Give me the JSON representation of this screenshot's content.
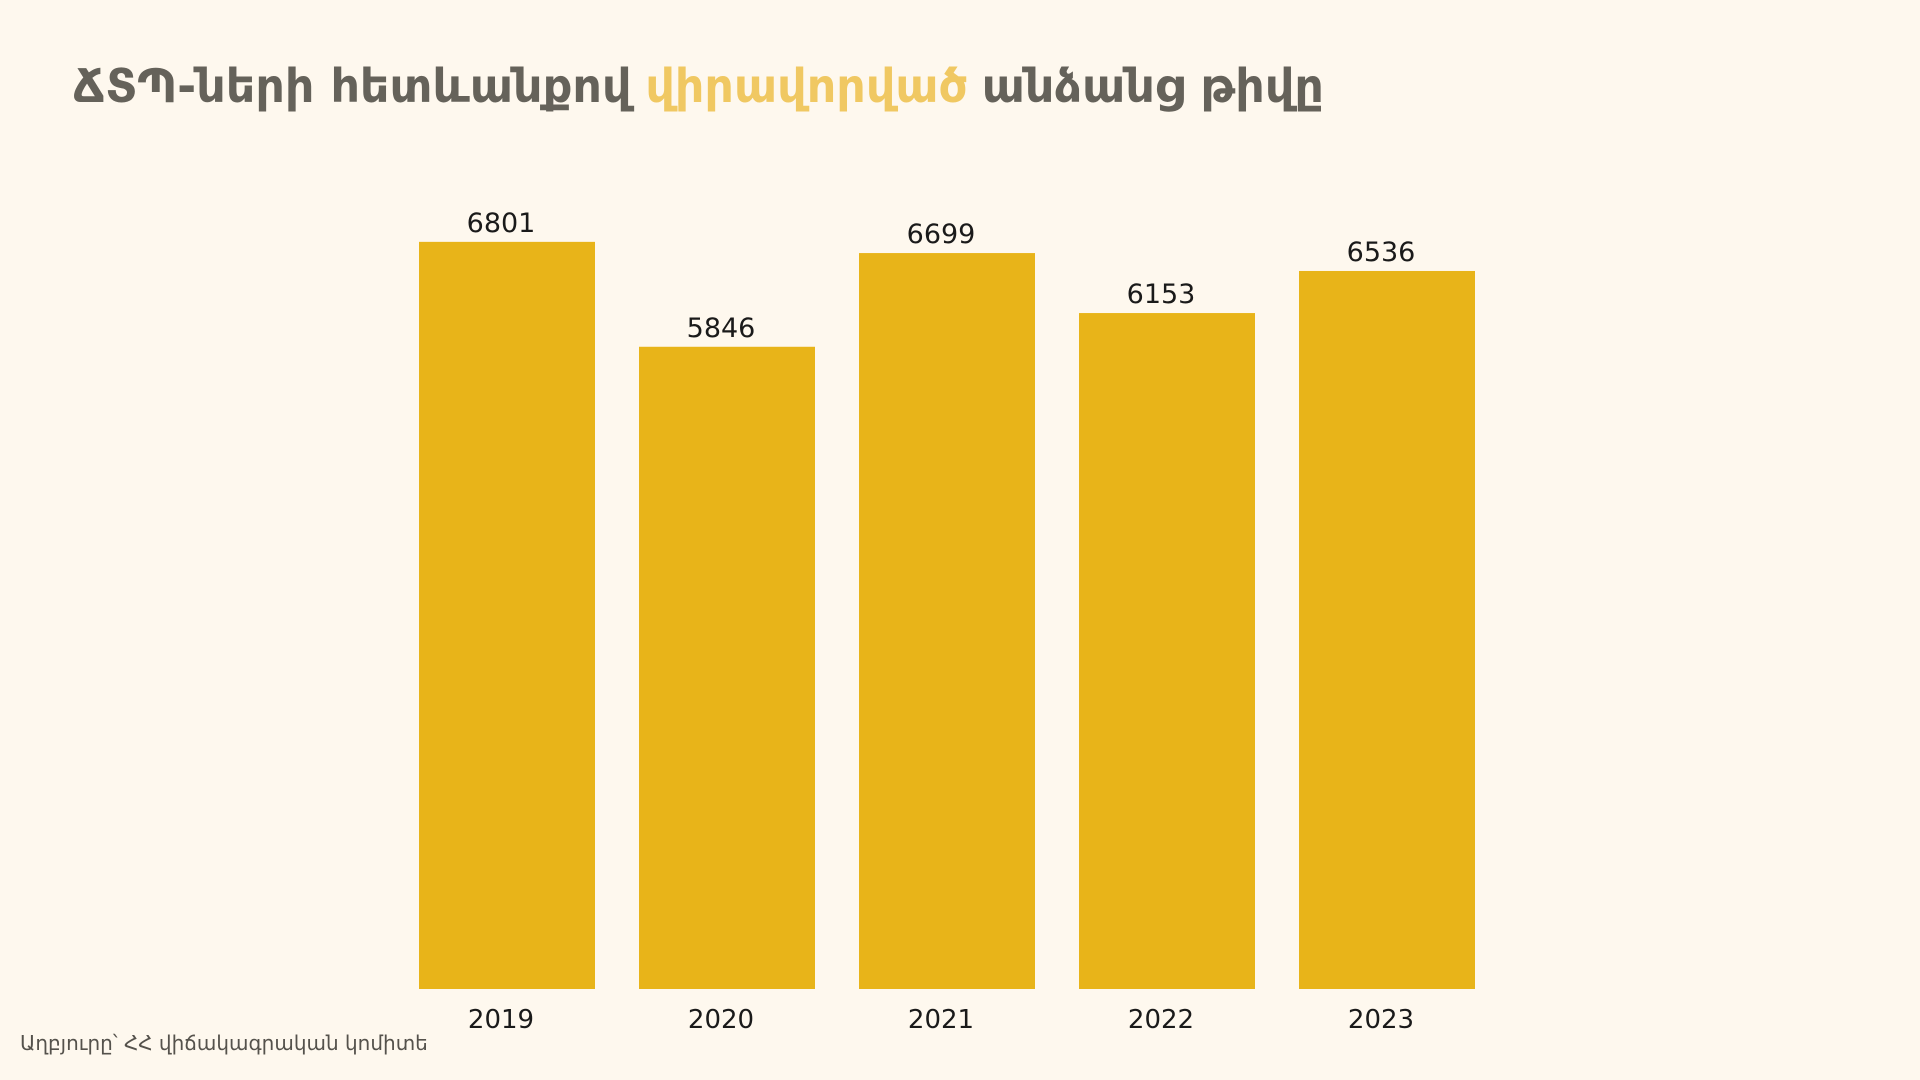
{
  "chart_data": {
    "type": "bar",
    "title": [
      "ՃՏՊ-ների հետևանքով",
      "վիրավորված",
      "անձանց թիվը"
    ],
    "title_colors": [
      "#65625a",
      "#f0c862",
      "#65625a"
    ],
    "categories": [
      "2019",
      "2020",
      "2021",
      "2022",
      "2023"
    ],
    "values": [
      6801,
      5846,
      6699,
      6153,
      6536
    ],
    "color": "#e8b419",
    "ylim": [
      0,
      7000
    ],
    "grid": false,
    "source": "Աղբյուրը՝ ՀՀ վիճակագրական կոմիտե"
  }
}
